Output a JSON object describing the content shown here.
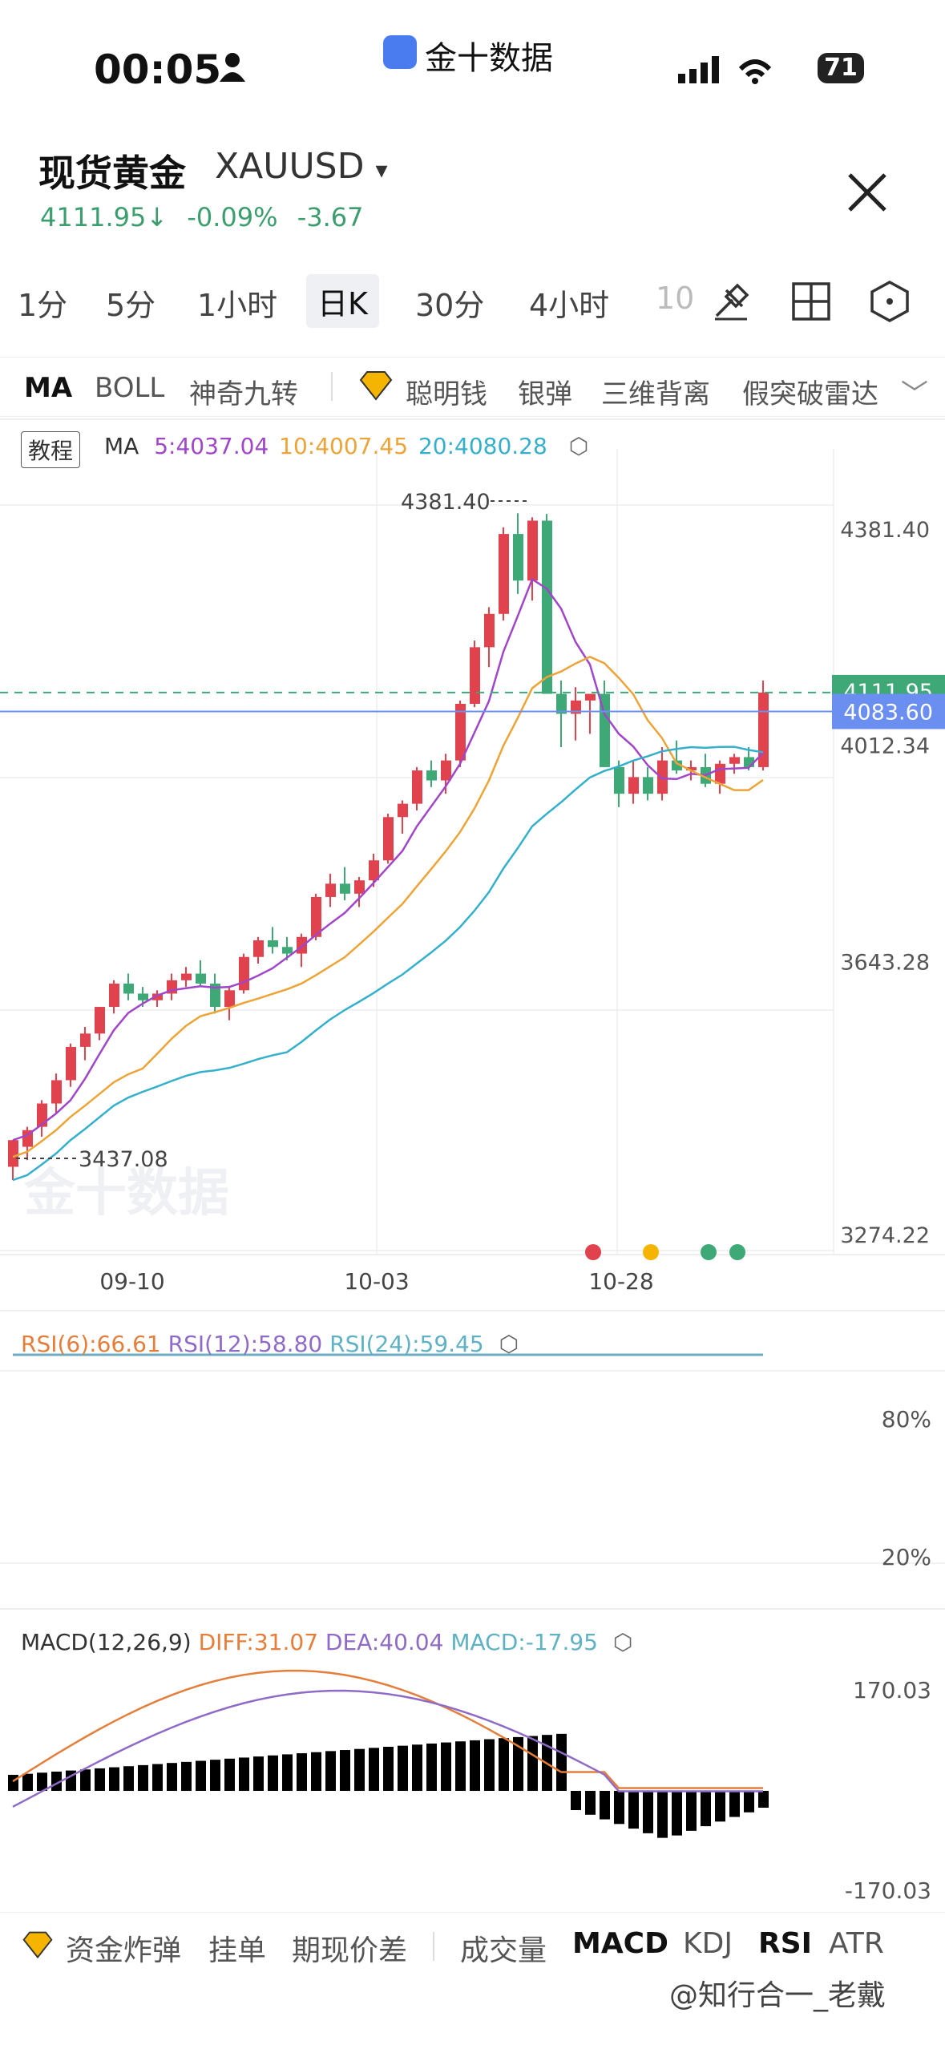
{
  "status_bar": {
    "time": "00:05",
    "app_name": "金十数据",
    "battery": "71"
  },
  "header": {
    "title": "现货黄金",
    "symbol": "XAUUSD",
    "price": "4111.95",
    "change_pct": "-0.09%",
    "change": "-3.67"
  },
  "timeframes": [
    "1分",
    "5分",
    "1小时",
    "日K",
    "30分",
    "4小时",
    "10"
  ],
  "active_timeframe": "日K",
  "indicator_tabs": [
    "MA",
    "BOLL",
    "神奇九转",
    "聪明钱",
    "银弹",
    "三维背离",
    "假突破雷达"
  ],
  "main_chart": {
    "tutorial": "教程",
    "ma_label": "MA",
    "ma5": "5:4037.04",
    "ma10": "10:4007.45",
    "ma20": "20:4080.28",
    "price_labels": [
      "4381.40",
      "4111.95",
      "4083.60",
      "4012.34",
      "3643.28",
      "3274.22"
    ],
    "high_marker": "4381.40",
    "low_marker": "3437.08",
    "dates": [
      "09-10",
      "10-03",
      "10-28"
    ],
    "watermark": "金十数据"
  },
  "rsi": {
    "rsi6": "RSI(6):66.61",
    "rsi12": "RSI(12):58.80",
    "rsi24": "RSI(24):59.45",
    "levels": [
      "80%",
      "20%"
    ]
  },
  "macd": {
    "label": "MACD(12,26,9)",
    "diff": "DIFF:31.07",
    "dea": "DEA:40.04",
    "macd": "MACD:-17.95",
    "levels": [
      "170.03",
      "-170.03"
    ]
  },
  "bottom_tabs": [
    "资金炸弹",
    "挂单",
    "期现价差",
    "成交量",
    "MACD",
    "KDJ",
    "RSI",
    "ATR"
  ],
  "footer_watermark": "@知行合一_老戴",
  "colors": {
    "up": "#e0424e",
    "down": "#3ea877",
    "ma5": "#a146c8",
    "ma10": "#eda437",
    "ma20": "#35b0cc"
  },
  "chart_data": {
    "type": "candlestick",
    "title": "",
    "candles": [
      [
        3400,
        3440,
        3380,
        3440
      ],
      [
        3430,
        3460,
        3410,
        3455
      ],
      [
        3460,
        3500,
        3445,
        3495
      ],
      [
        3495,
        3540,
        3480,
        3530
      ],
      [
        3530,
        3585,
        3520,
        3580
      ],
      [
        3580,
        3610,
        3560,
        3600
      ],
      [
        3600,
        3640,
        3590,
        3640
      ],
      [
        3640,
        3680,
        3630,
        3675
      ],
      [
        3675,
        3690,
        3650,
        3660
      ],
      [
        3660,
        3670,
        3640,
        3650
      ],
      [
        3650,
        3665,
        3640,
        3660
      ],
      [
        3660,
        3690,
        3650,
        3680
      ],
      [
        3680,
        3700,
        3670,
        3690
      ],
      [
        3690,
        3710,
        3670,
        3675
      ],
      [
        3675,
        3690,
        3630,
        3640
      ],
      [
        3640,
        3670,
        3620,
        3665
      ],
      [
        3665,
        3720,
        3660,
        3715
      ],
      [
        3715,
        3745,
        3705,
        3740
      ],
      [
        3740,
        3760,
        3720,
        3730
      ],
      [
        3730,
        3745,
        3710,
        3720
      ],
      [
        3720,
        3750,
        3700,
        3745
      ],
      [
        3745,
        3810,
        3740,
        3805
      ],
      [
        3805,
        3840,
        3790,
        3825
      ],
      [
        3825,
        3850,
        3800,
        3810
      ],
      [
        3810,
        3835,
        3790,
        3830
      ],
      [
        3830,
        3870,
        3820,
        3860
      ],
      [
        3860,
        3930,
        3855,
        3925
      ],
      [
        3925,
        3950,
        3900,
        3945
      ],
      [
        3945,
        4000,
        3935,
        3995
      ],
      [
        3995,
        4010,
        3970,
        3980
      ],
      [
        3980,
        4020,
        3960,
        4010
      ],
      [
        4010,
        4100,
        4000,
        4095
      ],
      [
        4095,
        4190,
        4090,
        4180
      ],
      [
        4180,
        4240,
        4150,
        4230
      ],
      [
        4230,
        4360,
        4220,
        4350
      ],
      [
        4350,
        4381,
        4260,
        4280
      ],
      [
        4280,
        4375,
        4250,
        4370
      ],
      [
        4370,
        4380,
        4110,
        4110
      ],
      [
        4110,
        4130,
        4030,
        4080
      ],
      [
        4080,
        4120,
        4040,
        4100
      ],
      [
        4100,
        4110,
        4050,
        4110
      ],
      [
        4110,
        4130,
        4000,
        4000
      ],
      [
        4000,
        4010,
        3940,
        3960
      ],
      [
        3960,
        4010,
        3945,
        3985
      ],
      [
        3985,
        4000,
        3950,
        3960
      ],
      [
        3960,
        4030,
        3950,
        4010
      ],
      [
        4010,
        4040,
        3990,
        3995
      ],
      [
        3995,
        4010,
        3980,
        4000
      ],
      [
        4000,
        4020,
        3970,
        3975
      ],
      [
        3975,
        4010,
        3960,
        4005
      ],
      [
        4005,
        4020,
        3990,
        4015
      ],
      [
        4015,
        4030,
        3995,
        4000
      ],
      [
        4000,
        4130,
        3995,
        4112
      ]
    ],
    "ylim": [
      3274.22,
      4381.4
    ],
    "xticks": [
      "09-10",
      "10-03",
      "10-28"
    ]
  }
}
